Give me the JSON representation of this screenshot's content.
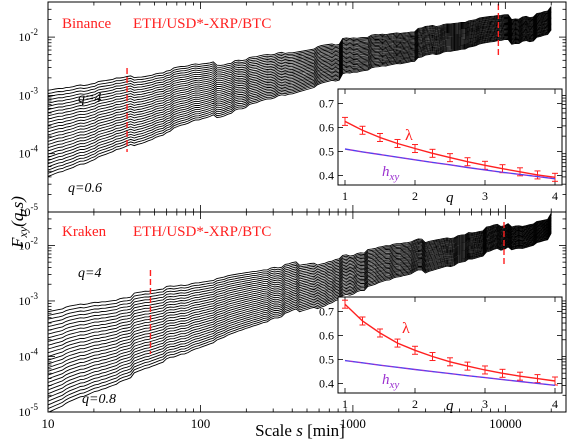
{
  "figure": {
    "ylabel_main": "F",
    "ylabel_sub": "xy",
    "ylabel_args": "(q,s)",
    "xlabel_prefix": "Scale ",
    "xlabel_var": "s",
    "xlabel_unit": " [min]",
    "x_ticks": [
      "10",
      "100",
      "1000",
      "10000"
    ],
    "y_tick_base": "10",
    "y_tick_exps": [
      "-5",
      "-4",
      "-3",
      "-2"
    ],
    "colors": {
      "curves": "#000000",
      "accent": "#ff2020",
      "hxy": "#9b30d0",
      "frame": "#000000"
    }
  },
  "panels": [
    {
      "exchange": "Binance",
      "pair": "ETH/USD*-XRP/BTC",
      "label_top_q": "q=4",
      "label_bottom_q": "q=0.6",
      "inset": {
        "lambda_label": "λ",
        "h_main": "h",
        "h_sub": "xy",
        "xlabel": "q",
        "x_ticks": [
          "1",
          "2",
          "3",
          "4"
        ],
        "y_ticks": [
          "0.4",
          "0.5",
          "0.6",
          "0.7"
        ]
      }
    },
    {
      "exchange": "Kraken",
      "pair": "ETH/USD*-XRP/BTC",
      "label_top_q": "q=4",
      "label_bottom_q": "q=0.8",
      "inset": {
        "lambda_label": "λ",
        "h_main": "h",
        "h_sub": "xy",
        "xlabel": "q",
        "x_ticks": [
          "1",
          "2",
          "3",
          "4"
        ],
        "y_ticks": [
          "0.4",
          "0.5",
          "0.6",
          "0.7"
        ]
      }
    }
  ],
  "chart_data": [
    {
      "type": "line",
      "title": "Binance ETH/USD*-XRP/BTC",
      "x_scale": "log",
      "y_scale": "log",
      "xlim": [
        10,
        25000
      ],
      "ylim": [
        1e-05,
        0.04
      ],
      "ylabel": "F_xy(q,s)",
      "xlabel": "Scale s [min]",
      "q_range": [
        0.6,
        4
      ],
      "n_curves": 28,
      "curve_start_s": 10,
      "curve_end_s": 20000,
      "curve_start_F": {
        "q_min": 4e-05,
        "q_max": 0.0012
      },
      "curve_end_F": {
        "q_min": 0.012,
        "q_max": 0.03
      },
      "crossover_scales_min": [
        33,
        9000
      ],
      "inset": {
        "type": "line",
        "xlabel": "q",
        "xlim": [
          0.9,
          4.1
        ],
        "ylim": [
          0.36,
          0.76
        ],
        "series": [
          {
            "name": "λ",
            "x": [
              1,
              1.25,
              1.5,
              1.75,
              2,
              2.25,
              2.5,
              2.75,
              3,
              3.25,
              3.5,
              3.75,
              4
            ],
            "y": [
              0.625,
              0.588,
              0.558,
              0.533,
              0.512,
              0.492,
              0.474,
              0.457,
              0.442,
              0.428,
              0.415,
              0.402,
              0.392
            ]
          },
          {
            "name": "h_xy",
            "x": [
              1,
              1.25,
              1.5,
              1.75,
              2,
              2.25,
              2.5,
              2.75,
              3,
              3.25,
              3.5,
              3.75,
              4
            ],
            "y": [
              0.51,
              0.498,
              0.487,
              0.476,
              0.465,
              0.454,
              0.444,
              0.433,
              0.423,
              0.413,
              0.404,
              0.395,
              0.386
            ]
          }
        ]
      }
    },
    {
      "type": "line",
      "title": "Kraken ETH/USD*-XRP/BTC",
      "x_scale": "log",
      "y_scale": "log",
      "xlim": [
        10,
        25000
      ],
      "ylim": [
        1e-05,
        0.04
      ],
      "ylabel": "F_xy(q,s)",
      "xlabel": "Scale s [min]",
      "q_range": [
        0.8,
        4
      ],
      "n_curves": 28,
      "curve_start_s": 10,
      "curve_end_s": 20000,
      "curve_start_F": {
        "q_min": 1e-05,
        "q_max": 0.00065
      },
      "curve_end_F": {
        "q_min": 0.014,
        "q_max": 0.032
      },
      "crossover_scales_min": [
        47,
        9800
      ],
      "inset": {
        "type": "line",
        "xlabel": "q",
        "xlim": [
          0.9,
          4.1
        ],
        "ylim": [
          0.36,
          0.76
        ],
        "series": [
          {
            "name": "λ",
            "x": [
              1,
              1.25,
              1.5,
              1.75,
              2,
              2.25,
              2.5,
              2.75,
              3,
              3.25,
              3.5,
              3.75,
              4
            ],
            "y": [
              0.73,
              0.66,
              0.61,
              0.568,
              0.538,
              0.512,
              0.49,
              0.472,
              0.456,
              0.442,
              0.43,
              0.42,
              0.41
            ]
          },
          {
            "name": "h_xy",
            "x": [
              1,
              1.25,
              1.5,
              1.75,
              2,
              2.25,
              2.5,
              2.75,
              3,
              3.25,
              3.5,
              3.75,
              4
            ],
            "y": [
              0.495,
              0.486,
              0.476,
              0.467,
              0.458,
              0.449,
              0.441,
              0.432,
              0.424,
              0.416,
              0.408,
              0.4,
              0.392
            ]
          }
        ]
      }
    }
  ]
}
